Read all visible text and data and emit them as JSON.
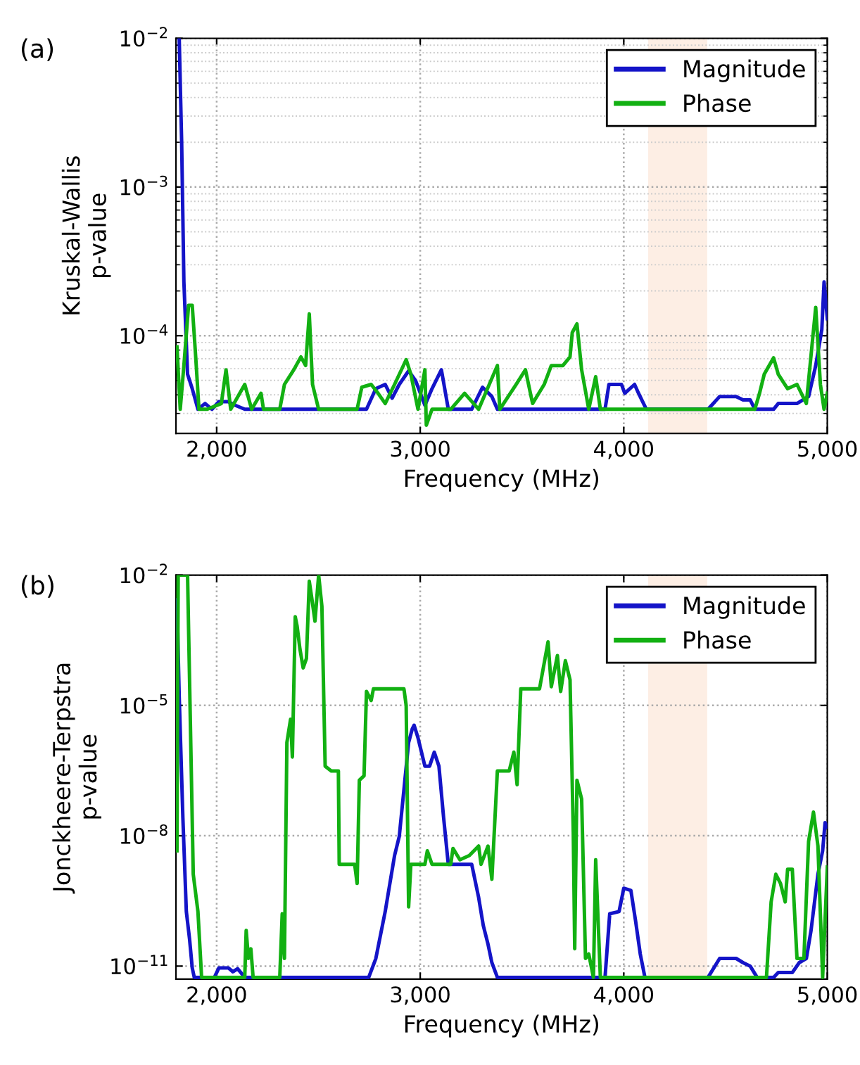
{
  "chart_data": [
    {
      "type": "line",
      "title": "(a)",
      "xlabel": "Frequency (MHz)",
      "ylabel": "Kruskal-Wallis\np-value",
      "log": "y",
      "grid": true,
      "legend": "top right",
      "xlim": [
        1800,
        5000
      ],
      "ylim": [
        2.2e-05,
        0.01
      ],
      "xticks": [
        {
          "value": 2000,
          "label": "2,000"
        },
        {
          "value": 3000,
          "label": "3,000"
        },
        {
          "value": 4000,
          "label": "4,000"
        },
        {
          "value": 5000,
          "label": "5,000"
        }
      ],
      "yticks": [
        {
          "value": 0.0001,
          "label": "10$^{−4}$"
        },
        {
          "value": 0.001,
          "label": "10$^{−3}$"
        },
        {
          "value": 0.01,
          "label": "10$^{−2}$"
        }
      ],
      "bands": [
        {
          "axis": "x",
          "from": 4120,
          "to": 4410,
          "color": "#fdeee4"
        }
      ],
      "series": [
        {
          "name": "Magnitude",
          "color": "#1414c8",
          "x": [
            1816,
            1828,
            1839,
            1857,
            1880,
            1908,
            1943,
            1977,
            2011,
            2057,
            2092,
            2138,
            2736,
            2782,
            2828,
            2862,
            2897,
            2943,
            2977,
            3023,
            3058,
            3104,
            3138,
            3253,
            3306,
            3352,
            3379,
            3908,
            3927,
            3989,
            4005,
            4053,
            4069,
            4111,
            4414,
            4471,
            4552,
            4586,
            4621,
            4644,
            4736,
            4759,
            4851,
            4908,
            4943,
            4973,
            4984,
            5000
          ],
          "values": [
            0.01,
            0.002,
            0.00023,
            5.5e-05,
            4.4e-05,
            3.2e-05,
            3.5e-05,
            3.2e-05,
            3.6e-05,
            3.6e-05,
            3.4e-05,
            3.2e-05,
            3.2e-05,
            4.4e-05,
            4.7e-05,
            3.8e-05,
            4.7e-05,
            5.8e-05,
            5e-05,
            3.4e-05,
            4.4e-05,
            5.9e-05,
            3.2e-05,
            3.2e-05,
            4.5e-05,
            3.9e-05,
            3.2e-05,
            3.2e-05,
            4.7e-05,
            4.7e-05,
            4.1e-05,
            4.7e-05,
            4.2e-05,
            3.2e-05,
            3.2e-05,
            3.9e-05,
            3.9e-05,
            3.7e-05,
            3.7e-05,
            3.2e-05,
            3.2e-05,
            3.5e-05,
            3.5e-05,
            3.9e-05,
            6.3e-05,
            0.00011,
            0.00023,
            0.00013
          ]
        },
        {
          "name": "Phase",
          "color": "#12b012",
          "x": [
            1805,
            1821,
            1839,
            1862,
            1880,
            1897,
            1913,
            1954,
            2023,
            2046,
            2069,
            2138,
            2172,
            2218,
            2230,
            2310,
            2333,
            2379,
            2414,
            2437,
            2455,
            2471,
            2501,
            2690,
            2713,
            2759,
            2793,
            2828,
            2874,
            2931,
            2954,
            2989,
            3023,
            3030,
            3058,
            3150,
            3218,
            3287,
            3379,
            3391,
            3471,
            3517,
            3552,
            3609,
            3644,
            3701,
            3736,
            3747,
            3770,
            3793,
            3828,
            3862,
            3885,
            4644,
            4667,
            4690,
            4736,
            4759,
            4805,
            4851,
            4897,
            4943,
            4966,
            4984,
            5000
          ],
          "values": [
            8.4e-05,
            3.2e-05,
            6.3e-05,
            0.00016,
            0.00016,
            7.2e-05,
            3.2e-05,
            3.2e-05,
            3.5e-05,
            5.9e-05,
            3.2e-05,
            4.7e-05,
            3.2e-05,
            4.1e-05,
            3.2e-05,
            3.2e-05,
            4.7e-05,
            5.9e-05,
            7.2e-05,
            6.3e-05,
            0.00014,
            4.7e-05,
            3.2e-05,
            3.2e-05,
            4.5e-05,
            4.7e-05,
            4.1e-05,
            3.5e-05,
            4.7e-05,
            6.9e-05,
            5.5e-05,
            3.2e-05,
            5.9e-05,
            2.5e-05,
            3.2e-05,
            3.2e-05,
            4.1e-05,
            3.2e-05,
            6.3e-05,
            3.2e-05,
            4.7e-05,
            5.9e-05,
            3.5e-05,
            4.7e-05,
            6.3e-05,
            6.3e-05,
            7.2e-05,
            0.000105,
            0.00012,
            5.9e-05,
            3.2e-05,
            5.3e-05,
            3.2e-05,
            3.2e-05,
            4.1e-05,
            5.5e-05,
            7.1e-05,
            5.5e-05,
            4.4e-05,
            4.7e-05,
            3.5e-05,
            0.000155,
            4.7e-05,
            3.2e-05,
            4.1e-05
          ]
        }
      ]
    },
    {
      "type": "line",
      "title": "(b)",
      "xlabel": "Frequency (MHz)",
      "ylabel": "Jonckheere-Terpstra\np-value",
      "log": "y",
      "grid": true,
      "legend": "top right",
      "xlim": [
        1800,
        5000
      ],
      "ylim": [
        5e-12,
        0.01
      ],
      "xticks": [
        {
          "value": 2000,
          "label": "2,000"
        },
        {
          "value": 3000,
          "label": "3,000"
        },
        {
          "value": 4000,
          "label": "4,000"
        },
        {
          "value": 5000,
          "label": "5,000"
        }
      ],
      "yticks": [
        {
          "value": 1e-11,
          "label": "10$^{−11}$"
        },
        {
          "value": 1e-08,
          "label": "10$^{−8}$"
        },
        {
          "value": 1e-05,
          "label": "10$^{−5}$"
        },
        {
          "value": 0.01,
          "label": "10$^{−2}$"
        }
      ],
      "bands": [
        {
          "axis": "x",
          "from": 4120,
          "to": 4410,
          "color": "#fdeee4"
        }
      ],
      "series": [
        {
          "name": "Magnitude",
          "color": "#1414c8",
          "x": [
            1805,
            1816,
            1834,
            1851,
            1867,
            1880,
            1890,
            1989,
            2011,
            2057,
            2080,
            2103,
            2138,
            2747,
            2782,
            2828,
            2851,
            2874,
            2897,
            2920,
            2943,
            2961,
            2970,
            2989,
            3023,
            3046,
            3069,
            3092,
            3115,
            3138,
            3253,
            3287,
            3310,
            3333,
            3352,
            3379,
            3908,
            3931,
            3977,
            4000,
            4035,
            4058,
            4081,
            4104,
            4414,
            4471,
            4552,
            4586,
            4621,
            4655,
            4736,
            4759,
            4828,
            4862,
            4897,
            4920,
            4954,
            4977,
            4989,
            5000
          ],
          "values": [
            0.0027,
            1.6e-05,
            2.6e-08,
            1.8e-10,
            4.1e-11,
            9.1e-12,
            5.5e-12,
            5.5e-12,
            9.1e-12,
            9.1e-12,
            7.4e-12,
            8.7e-12,
            5.5e-12,
            5.5e-12,
            1.5e-11,
            1.8e-10,
            8e-10,
            3.5e-09,
            9.6e-09,
            1.15e-07,
            1.4e-06,
            2.9e-06,
            3.5e-06,
            1.8e-06,
            4e-07,
            4e-07,
            8.4e-07,
            4e-07,
            2.6e-08,
            2.2e-09,
            2.2e-09,
            3.8e-10,
            8.5e-11,
            3.2e-11,
            1.2e-11,
            5.5e-12,
            5.5e-12,
            1.6e-10,
            1.8e-10,
            6.2e-10,
            5.5e-10,
            1.1e-10,
            1.9e-11,
            5.5e-12,
            5.5e-12,
            1.5e-11,
            1.5e-11,
            1.2e-11,
            1e-11,
            5.5e-12,
            5.5e-12,
            7.1e-12,
            7.1e-12,
            1.2e-11,
            1.5e-11,
            6.6e-11,
            1.3e-09,
            4.5e-09,
            2e-08,
            1.6e-08
          ]
        },
        {
          "name": "Phase",
          "color": "#12b012",
          "x": [
            1805,
            1811,
            1857,
            1885,
            1908,
            1926,
            2138,
            2145,
            2156,
            2168,
            2179,
            2310,
            2322,
            2333,
            2345,
            2363,
            2372,
            2386,
            2395,
            2409,
            2425,
            2441,
            2455,
            2467,
            2483,
            2501,
            2517,
            2533,
            2563,
            2598,
            2602,
            2678,
            2690,
            2701,
            2724,
            2736,
            2759,
            2770,
            2920,
            2931,
            2943,
            2954,
            3023,
            3035,
            3058,
            3150,
            3161,
            3195,
            3241,
            3287,
            3299,
            3333,
            3352,
            3379,
            3437,
            3460,
            3476,
            3494,
            3586,
            3628,
            3644,
            3674,
            3690,
            3713,
            3736,
            3752,
            3759,
            3770,
            3793,
            3812,
            3828,
            3851,
            3862,
            3885,
            3908,
            4701,
            4724,
            4747,
            4770,
            4793,
            4805,
            4828,
            4851,
            4885,
            4908,
            4932,
            4954,
            4977,
            5000
          ],
          "values": [
            4.5e-09,
            0.01,
            0.01,
            1.3e-09,
            1.8e-10,
            5.5e-12,
            5.5e-12,
            6.6e-11,
            1.5e-11,
            2.5e-11,
            5.5e-12,
            5.5e-12,
            1.6e-10,
            1.5e-11,
            1.4e-06,
            4.8e-06,
            6.5e-07,
            0.0011,
            0.00068,
            0.0002,
            7.3e-05,
            0.00012,
            0.0072,
            0.003,
            0.00087,
            0.01,
            0.0019,
            4e-07,
            3.1e-07,
            3.1e-07,
            2.2e-09,
            2.2e-09,
            8e-10,
            1.9e-07,
            2.4e-07,
            2.1e-05,
            1.3e-05,
            2.4e-05,
            2.4e-05,
            1e-05,
            2.3e-10,
            2.2e-09,
            2.2e-09,
            4.5e-09,
            2.2e-09,
            2.2e-09,
            5.1e-09,
            2.8e-09,
            3.5e-09,
            5.8e-09,
            2.2e-09,
            5.8e-09,
            1e-09,
            3.1e-07,
            3.1e-07,
            8.4e-07,
            1.5e-07,
            2.4e-05,
            2.4e-05,
            0.00029,
            2.7e-05,
            0.00014,
            2.1e-05,
            0.000107,
            3.9e-05,
            1.2e-08,
            2.5e-11,
            1.9e-07,
            7e-08,
            1.5e-11,
            1.9e-11,
            5.5e-12,
            2.8e-09,
            5.5e-12,
            5.5e-12,
            5.5e-12,
            3e-10,
            1.3e-09,
            8e-10,
            3e-10,
            1.7e-09,
            1.7e-09,
            1.5e-11,
            1.5e-11,
            7.4e-09,
            3.5e-08,
            5.8e-09,
            5.5e-12,
            1.9e-09
          ]
        }
      ]
    }
  ]
}
